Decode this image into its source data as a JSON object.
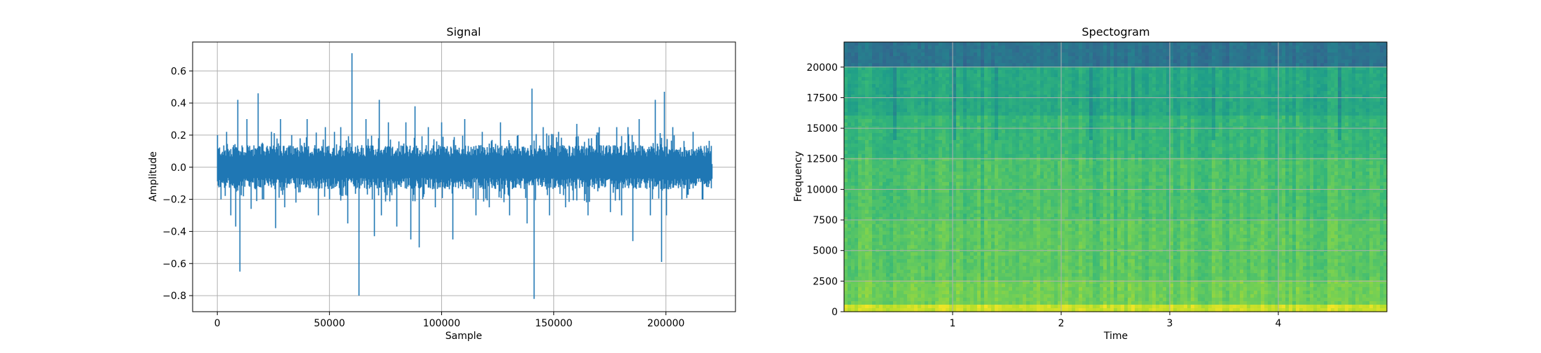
{
  "chart_data": [
    {
      "type": "line",
      "title": "Signal",
      "xlabel": "Sample",
      "ylabel": "Amplitude",
      "xlim": [
        -11000,
        231000
      ],
      "ylim": [
        -0.9,
        0.78
      ],
      "xticks": [
        0,
        50000,
        100000,
        150000,
        200000
      ],
      "xtick_labels": [
        "0",
        "50000",
        "100000",
        "150000",
        "200000"
      ],
      "yticks": [
        -0.8,
        -0.6,
        -0.4,
        -0.2,
        0.0,
        0.2,
        0.4,
        0.6
      ],
      "ytick_labels": [
        "−0.8",
        "−0.6",
        "−0.4",
        "−0.2",
        "0.0",
        "0.2",
        "0.4",
        "0.6"
      ],
      "grid": true,
      "line_color": "#1f77b4",
      "n_samples": 220500,
      "baseline_band": [
        -0.12,
        0.12
      ],
      "series": [
        {
          "x": [
            0,
            1500,
            4000,
            6000,
            8000,
            9000,
            10000,
            13000,
            15000,
            18000,
            20000,
            24000,
            26000,
            28000,
            30000,
            33000,
            35000,
            40000,
            45000,
            48000,
            50000,
            52000,
            55000,
            58000,
            60000,
            63000,
            66000,
            70000,
            72000,
            73000,
            76000,
            80000,
            84000,
            86000,
            88000,
            90000,
            94000,
            97000,
            100000,
            105000,
            110000,
            115000,
            118000,
            121000,
            126000,
            130000,
            134000,
            138000,
            140000,
            141000,
            145000,
            148000,
            152000,
            155000,
            160000,
            165000,
            170000,
            175000,
            178000,
            180000,
            183000,
            185000,
            188000,
            193000,
            195000,
            198000,
            199000,
            200000,
            203000,
            207000,
            212000,
            216000,
            220500
          ],
          "y": [
            0.2,
            -0.2,
            0.22,
            -0.3,
            -0.37,
            0.42,
            -0.65,
            0.3,
            -0.26,
            0.46,
            -0.2,
            0.22,
            -0.38,
            0.3,
            -0.25,
            0.2,
            -0.22,
            0.3,
            -0.3,
            0.25,
            -0.2,
            0.22,
            0.25,
            -0.35,
            0.71,
            -0.8,
            0.3,
            -0.43,
            0.42,
            -0.3,
            0.28,
            -0.37,
            0.28,
            -0.45,
            0.38,
            -0.5,
            0.25,
            -0.25,
            0.28,
            -0.45,
            0.3,
            -0.3,
            0.22,
            -0.25,
            0.28,
            -0.3,
            0.2,
            -0.35,
            0.49,
            -0.82,
            0.25,
            -0.3,
            0.22,
            -0.25,
            0.27,
            -0.3,
            0.25,
            -0.28,
            0.25,
            -0.3,
            0.25,
            -0.46,
            0.3,
            -0.3,
            0.42,
            -0.59,
            0.47,
            -0.3,
            0.25,
            -0.2,
            0.22,
            -0.2,
            0.02
          ]
        }
      ]
    },
    {
      "type": "heatmap",
      "title": "Spectogram",
      "xlabel": "Time",
      "ylabel": "Frequency",
      "xlim": [
        0,
        5.0
      ],
      "ylim": [
        0,
        22050
      ],
      "xticks": [
        1,
        2,
        3,
        4
      ],
      "xtick_labels": [
        "1",
        "2",
        "3",
        "4"
      ],
      "yticks": [
        0,
        2500,
        5000,
        7500,
        10000,
        12500,
        15000,
        17500,
        20000
      ],
      "ytick_labels": [
        "0",
        "2500",
        "5000",
        "7500",
        "10000",
        "12500",
        "15000",
        "17500",
        "20000"
      ],
      "grid": true,
      "colormap": "viridis",
      "bands": [
        {
          "f_from": 0,
          "f_to": 600,
          "level": 0.92
        },
        {
          "f_from": 600,
          "f_to": 2500,
          "level": 0.78
        },
        {
          "f_from": 2500,
          "f_to": 7500,
          "level": 0.74
        },
        {
          "f_from": 7500,
          "f_to": 12500,
          "level": 0.71
        },
        {
          "f_from": 12500,
          "f_to": 16000,
          "level": 0.66
        },
        {
          "f_from": 16000,
          "f_to": 20000,
          "level": 0.6
        },
        {
          "f_from": 20000,
          "f_to": 22050,
          "level": 0.38
        }
      ],
      "vertical_dark_streaks_time": [
        0.45,
        1.0,
        1.4,
        2.25,
        2.65,
        3.4,
        4.55
      ]
    }
  ]
}
